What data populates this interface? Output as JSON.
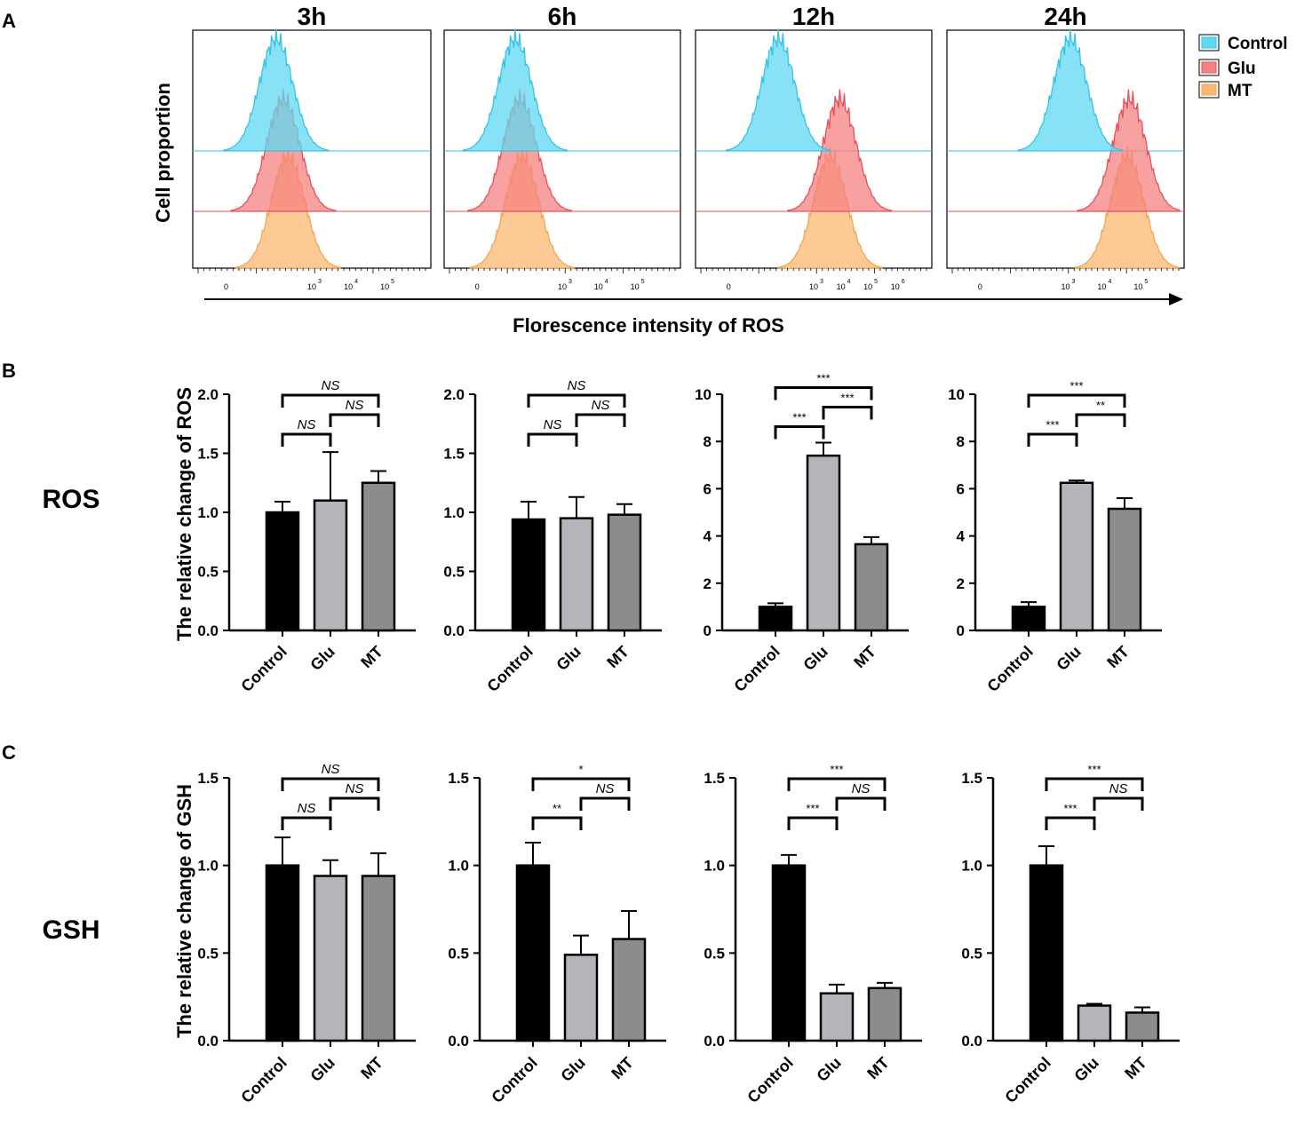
{
  "panel_letters": {
    "a": "A",
    "b": "B",
    "c": "C"
  },
  "colors": {
    "control": "#5fd8f2",
    "glu": "#f58282",
    "mt": "#fbb870",
    "control_line": "#38c3e6",
    "glu_line": "#e8505a",
    "mt_line": "#f4a54f",
    "bar_control": "#000000",
    "bar_glu": "#b4b4ba",
    "bar_mt": "#8c8c8c"
  },
  "chart_data": {
    "flow": {
      "type": "area",
      "ylabel": "Cell proportion",
      "xlabel": "Florescence intensity of ROS",
      "legend": {
        "position": "top-right",
        "entries": [
          "Control",
          "Glu",
          "MT"
        ]
      },
      "panels": [
        {
          "title": "3h",
          "ticks": [
            "0",
            "10",
            "10",
            "10"
          ],
          "exps": [
            "",
            "3",
            "4",
            "5"
          ],
          "peaks": {
            "Control": 0.35,
            "Glu": 0.38,
            "MT": 0.4
          }
        },
        {
          "title": "6h",
          "ticks": [
            "0",
            "10",
            "10",
            "10"
          ],
          "exps": [
            "",
            "3",
            "4",
            "5"
          ],
          "peaks": {
            "Control": 0.3,
            "Glu": 0.32,
            "MT": 0.33
          }
        },
        {
          "title": "12h",
          "ticks": [
            "0",
            "10",
            "10",
            "10",
            "10"
          ],
          "exps": [
            "",
            "3",
            "4",
            "5",
            "6"
          ],
          "peaks": {
            "Control": 0.35,
            "Glu": 0.61,
            "MT": 0.57
          }
        },
        {
          "title": "24h",
          "ticks": [
            "0",
            "10",
            "10",
            "10"
          ],
          "exps": [
            "",
            "3",
            "4",
            "5"
          ],
          "peaks": {
            "Control": 0.52,
            "Glu": 0.77,
            "MT": 0.76
          }
        }
      ]
    },
    "bars": [
      {
        "row": "ROS",
        "type": "bar",
        "ylabel": "The relative change of ROS",
        "categories": [
          "Control",
          "Glu",
          "MT"
        ],
        "panels": [
          {
            "time": "3h",
            "ylim": [
              0,
              2.0
            ],
            "ticks": [
              "0.0",
              "0.5",
              "1.0",
              "1.5",
              "2.0"
            ],
            "values": [
              1.0,
              1.1,
              1.25
            ],
            "errors": [
              0.09,
              0.41,
              0.1
            ],
            "sig": [
              {
                "a": 0,
                "b": 1,
                "label": "NS",
                "level": 0.0
              },
              {
                "a": 1,
                "b": 2,
                "label": "NS",
                "level": 1.0
              },
              {
                "a": 0,
                "b": 2,
                "label": "NS",
                "level": 2.0
              }
            ]
          },
          {
            "time": "6h",
            "ylim": [
              0,
              2.0
            ],
            "ticks": [
              "0.0",
              "0.5",
              "1.0",
              "1.5",
              "2.0"
            ],
            "values": [
              0.94,
              0.95,
              0.98
            ],
            "errors": [
              0.15,
              0.18,
              0.09
            ],
            "sig": [
              {
                "a": 0,
                "b": 1,
                "label": "NS",
                "level": 0.0
              },
              {
                "a": 1,
                "b": 2,
                "label": "NS",
                "level": 1.0
              },
              {
                "a": 0,
                "b": 2,
                "label": "NS",
                "level": 2.0
              }
            ]
          },
          {
            "time": "12h",
            "ylim": [
              0,
              10
            ],
            "ticks": [
              "0",
              "2",
              "4",
              "6",
              "8",
              "10"
            ],
            "values": [
              1.0,
              7.4,
              3.65
            ],
            "errors": [
              0.15,
              0.55,
              0.3
            ],
            "sig": [
              {
                "a": 0,
                "b": 1,
                "label": "***",
                "level": 0.0
              },
              {
                "a": 1,
                "b": 2,
                "label": "***",
                "level": 1.0
              },
              {
                "a": 0,
                "b": 2,
                "label": "***",
                "level": 2.0
              }
            ]
          },
          {
            "time": "24h",
            "ylim": [
              0,
              10
            ],
            "ticks": [
              "0",
              "2",
              "4",
              "6",
              "8",
              "10"
            ],
            "values": [
              1.0,
              6.25,
              5.15
            ],
            "errors": [
              0.2,
              0.1,
              0.45
            ],
            "sig": [
              {
                "a": 0,
                "b": 1,
                "label": "***",
                "level": 0.0
              },
              {
                "a": 1,
                "b": 2,
                "label": "**",
                "level": 1.0
              },
              {
                "a": 0,
                "b": 2,
                "label": "***",
                "level": 2.0
              }
            ]
          }
        ]
      },
      {
        "row": "GSH",
        "type": "bar",
        "ylabel": "The relative change of GSH",
        "categories": [
          "Control",
          "Glu",
          "MT"
        ],
        "panels": [
          {
            "time": "3h",
            "ylim": [
              0,
              1.5
            ],
            "ticks": [
              "0.0",
              "0.5",
              "1.0",
              "1.5"
            ],
            "values": [
              1.0,
              0.94,
              0.94
            ],
            "errors": [
              0.16,
              0.09,
              0.13
            ],
            "sig": [
              {
                "a": 0,
                "b": 1,
                "label": "NS",
                "level": 0.0
              },
              {
                "a": 1,
                "b": 2,
                "label": "NS",
                "level": 1.0
              },
              {
                "a": 0,
                "b": 2,
                "label": "NS",
                "level": 2.0
              }
            ]
          },
          {
            "time": "6h",
            "ylim": [
              0,
              1.5
            ],
            "ticks": [
              "0.0",
              "0.5",
              "1.0",
              "1.5"
            ],
            "values": [
              1.0,
              0.49,
              0.58
            ],
            "errors": [
              0.13,
              0.11,
              0.16
            ],
            "sig": [
              {
                "a": 0,
                "b": 1,
                "label": "**",
                "level": 0.0
              },
              {
                "a": 1,
                "b": 2,
                "label": "NS",
                "level": 1.0
              },
              {
                "a": 0,
                "b": 2,
                "label": "*",
                "level": 2.0
              }
            ]
          },
          {
            "time": "12h",
            "ylim": [
              0,
              1.5
            ],
            "ticks": [
              "0.0",
              "0.5",
              "1.0",
              "1.5"
            ],
            "values": [
              1.0,
              0.27,
              0.3
            ],
            "errors": [
              0.06,
              0.05,
              0.03
            ],
            "sig": [
              {
                "a": 0,
                "b": 1,
                "label": "***",
                "level": 0.0
              },
              {
                "a": 1,
                "b": 2,
                "label": "NS",
                "level": 1.0
              },
              {
                "a": 0,
                "b": 2,
                "label": "***",
                "level": 2.0
              }
            ]
          },
          {
            "time": "24h",
            "ylim": [
              0,
              1.5
            ],
            "ticks": [
              "0.0",
              "0.5",
              "1.0",
              "1.5"
            ],
            "values": [
              1.0,
              0.2,
              0.16
            ],
            "errors": [
              0.11,
              0.01,
              0.03
            ],
            "sig": [
              {
                "a": 0,
                "b": 1,
                "label": "***",
                "level": 0.0
              },
              {
                "a": 1,
                "b": 2,
                "label": "NS",
                "level": 1.0
              },
              {
                "a": 0,
                "b": 2,
                "label": "***",
                "level": 2.0
              }
            ]
          }
        ]
      }
    ]
  }
}
